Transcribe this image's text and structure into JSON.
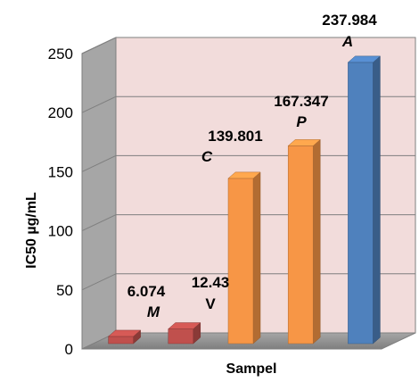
{
  "chart_data": {
    "type": "bar",
    "title": "",
    "xlabel": "Sampel",
    "ylabel": "IC50 µg/mL",
    "ylim": [
      0,
      250
    ],
    "yticks": [
      0,
      50,
      100,
      150,
      200,
      250
    ],
    "grid": true,
    "style": "3d-column",
    "categories": [
      "M",
      "V",
      "C",
      "P",
      "A"
    ],
    "values": [
      6.074,
      12.43,
      139.801,
      167.347,
      237.984
    ],
    "data_labels": [
      "6.074",
      "12.43",
      "139.801",
      "167.347",
      "237.984"
    ],
    "bar_colors": [
      "#c0504d",
      "#c0504d",
      "#f79646",
      "#f79646",
      "#4f81bd"
    ],
    "category_italic": [
      true,
      false,
      true,
      true,
      true
    ]
  }
}
